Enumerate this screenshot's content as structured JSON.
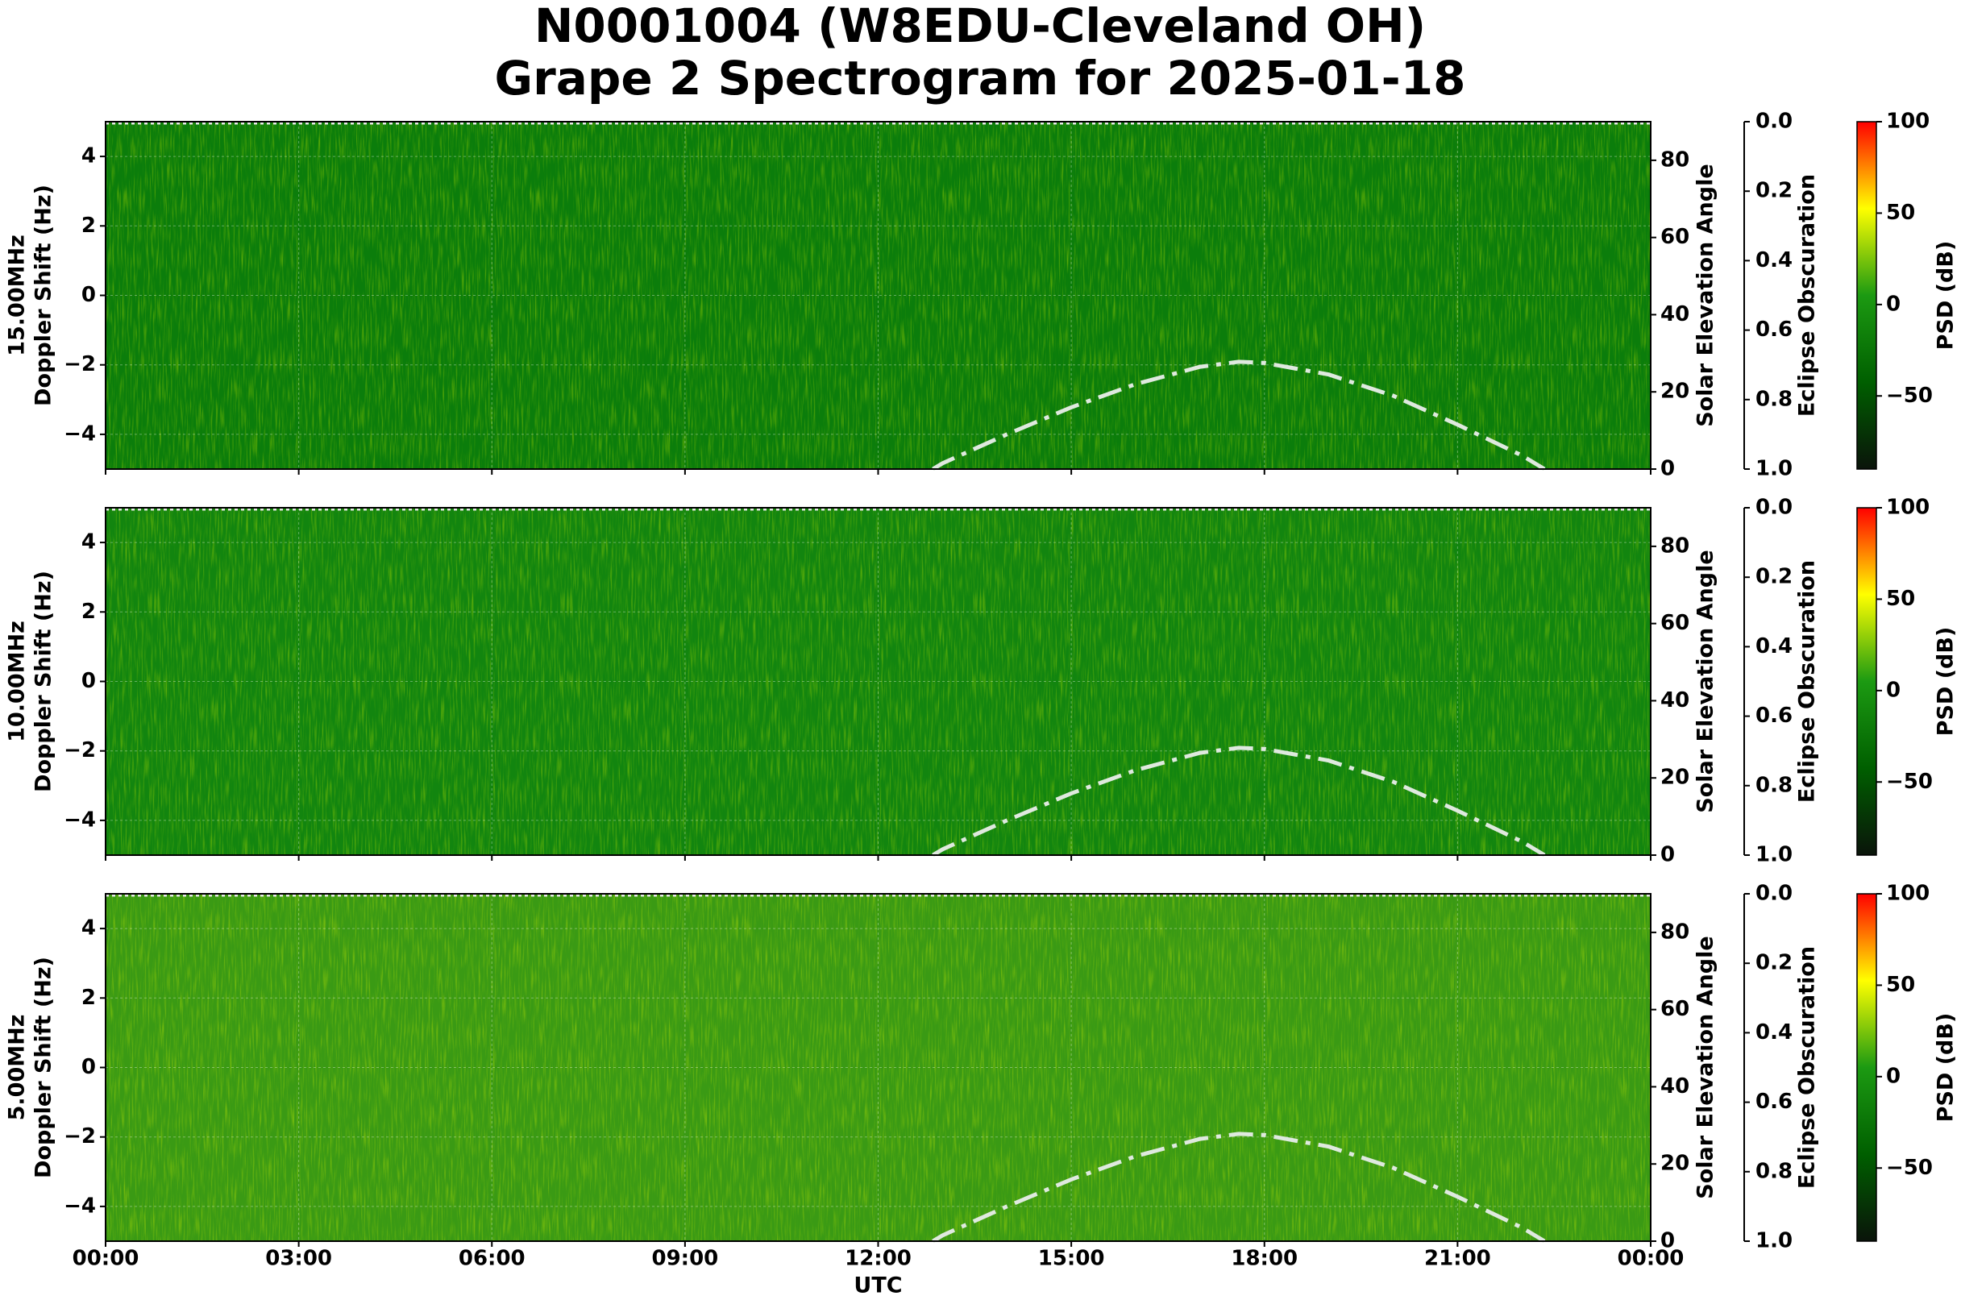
{
  "title": [
    "N0001004 (W8EDU-Cleveland OH)",
    "Grape 2 Spectrogram for 2025-01-18"
  ],
  "chart_data": [
    {
      "type": "spectrogram",
      "ylabel": [
        "15.00MHz",
        "Doppler Shift (Hz)"
      ],
      "xlim": [
        0,
        24
      ],
      "xticks": [
        0,
        3,
        6,
        9,
        12,
        15,
        18,
        21,
        24
      ],
      "ylim": [
        -5,
        5
      ],
      "yticks": [
        {
          "value": -4,
          "label": "−4"
        },
        {
          "value": -2,
          "label": "−2"
        },
        0,
        2,
        4
      ],
      "grid": true,
      "background_color": "#0b7d0b",
      "y2label": "Solar Elevation Angle",
      "y2lim": [
        0,
        90
      ],
      "y2ticks": [
        0,
        20,
        40,
        60,
        80
      ],
      "y3label": "Eclipse Obscuration",
      "y3lim": [
        0,
        1
      ],
      "y3_inverted": true,
      "y3ticks": [
        {
          "value": 0,
          "label": "0.0"
        },
        {
          "value": 0.2,
          "label": "0.2"
        },
        {
          "value": 0.4,
          "label": "0.4"
        },
        {
          "value": 0.6,
          "label": "0.6"
        },
        {
          "value": 0.8,
          "label": "0.8"
        },
        {
          "value": 1,
          "label": "1.0"
        }
      ],
      "colorbar": {
        "label": "PSD (dB)",
        "lim": [
          -90,
          100
        ],
        "ticks": [
          {
            "value": -50,
            "label": "−50"
          },
          0,
          50,
          100
        ],
        "colors": [
          "#0a140a",
          "#005f00",
          "#1c9a12",
          "#ffff00",
          "#ff0000"
        ]
      },
      "solar_elevation": {
        "axis": "y2",
        "color": "#dfe9df",
        "x": [
          12.85,
          13,
          14,
          15,
          16,
          17,
          17.6,
          18,
          19,
          20,
          21,
          22,
          22.35
        ],
        "values": [
          0,
          1.5,
          9,
          16,
          22,
          26.5,
          27.8,
          27.5,
          24.5,
          19,
          11.5,
          3.5,
          0
        ]
      }
    },
    {
      "type": "spectrogram",
      "ylabel": [
        "10.00MHz",
        "Doppler Shift (Hz)"
      ],
      "xlim": [
        0,
        24
      ],
      "xticks": [
        0,
        3,
        6,
        9,
        12,
        15,
        18,
        21,
        24
      ],
      "ylim": [
        -5,
        5
      ],
      "yticks": [
        {
          "value": -4,
          "label": "−4"
        },
        {
          "value": -2,
          "label": "−2"
        },
        0,
        2,
        4
      ],
      "grid": true,
      "background_color": "#12850f",
      "y2label": "Solar Elevation Angle",
      "y2lim": [
        0,
        90
      ],
      "y2ticks": [
        0,
        20,
        40,
        60,
        80
      ],
      "y3label": "Eclipse Obscuration",
      "y3lim": [
        0,
        1
      ],
      "y3_inverted": true,
      "y3ticks": [
        {
          "value": 0,
          "label": "0.0"
        },
        {
          "value": 0.2,
          "label": "0.2"
        },
        {
          "value": 0.4,
          "label": "0.4"
        },
        {
          "value": 0.6,
          "label": "0.6"
        },
        {
          "value": 0.8,
          "label": "0.8"
        },
        {
          "value": 1,
          "label": "1.0"
        }
      ],
      "colorbar": {
        "label": "PSD (dB)",
        "lim": [
          -90,
          100
        ],
        "ticks": [
          {
            "value": -50,
            "label": "−50"
          },
          0,
          50,
          100
        ],
        "colors": [
          "#0a140a",
          "#005f00",
          "#1c9a12",
          "#ffff00",
          "#ff0000"
        ]
      },
      "solar_elevation": {
        "axis": "y2",
        "color": "#dfe9df",
        "x": [
          12.85,
          13,
          14,
          15,
          16,
          17,
          17.6,
          18,
          19,
          20,
          21,
          22,
          22.35
        ],
        "values": [
          0,
          1.5,
          9,
          16,
          22,
          26.5,
          27.8,
          27.5,
          24.5,
          19,
          11.5,
          3.5,
          0
        ]
      }
    },
    {
      "type": "spectrogram",
      "ylabel": [
        "5.00MHz",
        "Doppler Shift (Hz)"
      ],
      "xlabel": "UTC",
      "xlim": [
        0,
        24
      ],
      "xticks": [
        {
          "value": 0,
          "label": "00:00"
        },
        {
          "value": 3,
          "label": "03:00"
        },
        {
          "value": 6,
          "label": "06:00"
        },
        {
          "value": 9,
          "label": "09:00"
        },
        {
          "value": 12,
          "label": "12:00"
        },
        {
          "value": 15,
          "label": "15:00"
        },
        {
          "value": 18,
          "label": "18:00"
        },
        {
          "value": 21,
          "label": "21:00"
        },
        {
          "value": 24,
          "label": "00:00"
        }
      ],
      "ylim": [
        -5,
        5
      ],
      "yticks": [
        {
          "value": -4,
          "label": "−4"
        },
        {
          "value": -2,
          "label": "−2"
        },
        0,
        2,
        4
      ],
      "grid": true,
      "background_color": "#3a9a14",
      "y2label": "Solar Elevation Angle",
      "y2lim": [
        0,
        90
      ],
      "y2ticks": [
        0,
        20,
        40,
        60,
        80
      ],
      "y3label": "Eclipse Obscuration",
      "y3lim": [
        0,
        1
      ],
      "y3_inverted": true,
      "y3ticks": [
        {
          "value": 0,
          "label": "0.0"
        },
        {
          "value": 0.2,
          "label": "0.2"
        },
        {
          "value": 0.4,
          "label": "0.4"
        },
        {
          "value": 0.6,
          "label": "0.6"
        },
        {
          "value": 0.8,
          "label": "0.8"
        },
        {
          "value": 1,
          "label": "1.0"
        }
      ],
      "colorbar": {
        "label": "PSD (dB)",
        "lim": [
          -90,
          100
        ],
        "ticks": [
          {
            "value": -50,
            "label": "−50"
          },
          0,
          50,
          100
        ],
        "colors": [
          "#0a140a",
          "#005f00",
          "#1c9a12",
          "#ffff00",
          "#ff0000"
        ]
      },
      "solar_elevation": {
        "axis": "y2",
        "color": "#dfe9df",
        "x": [
          12.85,
          13,
          14,
          15,
          16,
          17,
          17.6,
          18,
          19,
          20,
          21,
          22,
          22.35
        ],
        "values": [
          0,
          1.5,
          9,
          16,
          22,
          26.5,
          27.8,
          27.5,
          24.5,
          19,
          11.5,
          3.5,
          0
        ]
      }
    }
  ]
}
